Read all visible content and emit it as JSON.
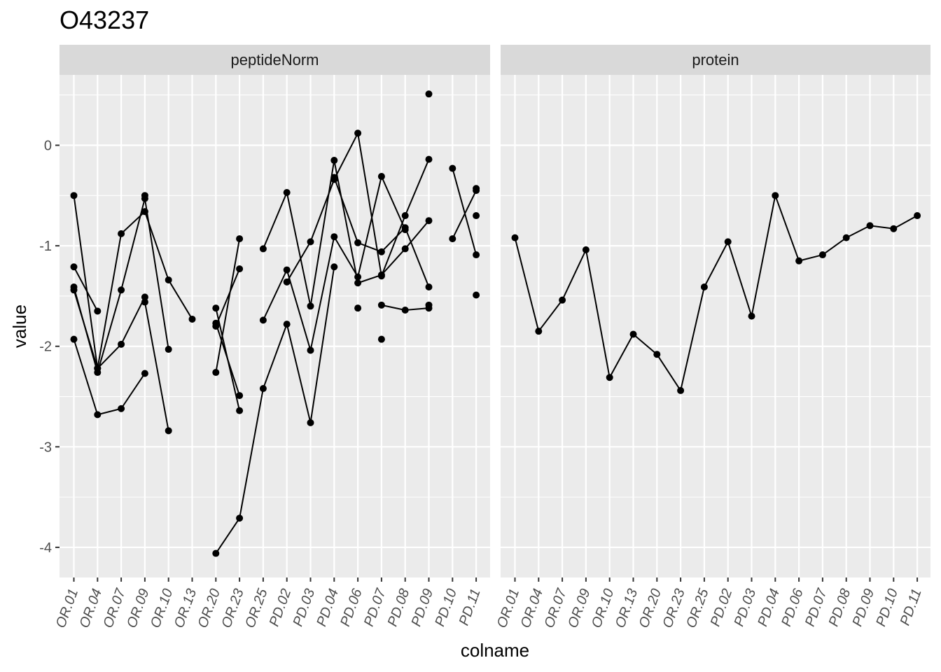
{
  "chart_data": {
    "type": "line",
    "title": "O43237",
    "xlabel": "colname",
    "ylabel": "value",
    "ylim": [
      -4.3,
      0.7
    ],
    "y_breaks": [
      0,
      -1,
      -2,
      -3,
      -4
    ],
    "y_tick_labels": [
      "0",
      "-1",
      "-2",
      "-3",
      "-4"
    ],
    "categories": [
      "OR.01",
      "OR.04",
      "OR.07",
      "OR.09",
      "OR.10",
      "OR.13",
      "OR.20",
      "OR.23",
      "OR.25",
      "PD.02",
      "PD.03",
      "PD.04",
      "PD.06",
      "PD.07",
      "PD.08",
      "PD.09",
      "PD.10",
      "PD.11"
    ],
    "grid": true,
    "colors": {
      "panel_bg": "#ebebeb",
      "grid": "#ffffff",
      "strip_bg": "#d9d9d9",
      "line": "#000000",
      "point": "#000000"
    },
    "panels": [
      {
        "strip": "peptideNorm",
        "series": [
          {
            "values": [
              -0.5,
              -2.22,
              -0.88,
              -0.66,
              -1.34,
              -1.73,
              null,
              null,
              null,
              null,
              null,
              null,
              null,
              null,
              null,
              null,
              null,
              null
            ]
          },
          {
            "values": [
              -1.41,
              -2.26,
              -1.44,
              -0.53,
              -2.03,
              null,
              null,
              null,
              null,
              null,
              null,
              null,
              null,
              null,
              null,
              null,
              null,
              null
            ]
          },
          {
            "values": [
              -1.44,
              -2.22,
              -1.98,
              -1.51,
              null,
              null,
              null,
              null,
              null,
              null,
              null,
              null,
              null,
              null,
              null,
              null,
              null,
              null
            ]
          },
          {
            "values": [
              -1.93,
              -2.68,
              -2.62,
              -2.27,
              null,
              null,
              null,
              null,
              null,
              null,
              null,
              null,
              null,
              null,
              null,
              null,
              null,
              null
            ]
          },
          {
            "values": [
              -1.21,
              -1.65,
              null,
              -1.56,
              -2.84,
              null,
              null,
              null,
              null,
              null,
              null,
              null,
              null,
              null,
              null,
              null,
              null,
              null
            ]
          },
          {
            "values": [
              null,
              null,
              null,
              -0.5,
              null,
              null,
              -1.62,
              -2.64,
              null,
              null,
              null,
              null,
              null,
              null,
              null,
              null,
              null,
              null
            ]
          },
          {
            "values": [
              null,
              null,
              null,
              null,
              null,
              null,
              -4.06,
              -3.71,
              -2.42,
              -1.78,
              -2.76,
              -1.21,
              null,
              null,
              null,
              null,
              null,
              null
            ]
          },
          {
            "values": [
              null,
              null,
              null,
              null,
              null,
              null,
              -2.26,
              -0.93,
              null,
              null,
              null,
              null,
              null,
              null,
              null,
              null,
              null,
              null
            ]
          },
          {
            "values": [
              null,
              null,
              null,
              null,
              null,
              null,
              -1.77,
              -2.49,
              null,
              null,
              null,
              null,
              null,
              null,
              null,
              null,
              null,
              null
            ]
          },
          {
            "values": [
              null,
              null,
              null,
              null,
              null,
              null,
              -1.8,
              -1.23,
              null,
              null,
              null,
              null,
              null,
              null,
              null,
              null,
              null,
              null
            ]
          },
          {
            "values": [
              null,
              null,
              null,
              null,
              null,
              null,
              null,
              null,
              -1.74,
              -1.24,
              -2.04,
              -0.91,
              -1.31,
              -0.31,
              -0.84,
              null,
              null,
              null
            ]
          },
          {
            "values": [
              null,
              null,
              null,
              null,
              null,
              null,
              null,
              null,
              -1.03,
              -0.47,
              -1.6,
              -0.15,
              -1.37,
              -1.29,
              -1.03,
              -0.75,
              null,
              null
            ]
          },
          {
            "values": [
              null,
              null,
              null,
              null,
              null,
              null,
              null,
              null,
              null,
              -1.36,
              -0.96,
              -0.34,
              0.12,
              -1.3,
              -0.7,
              -0.14,
              null,
              null
            ]
          },
          {
            "values": [
              null,
              null,
              null,
              null,
              null,
              null,
              null,
              null,
              null,
              null,
              null,
              -0.32,
              -0.97,
              -1.06,
              -0.82,
              -1.41,
              null,
              null
            ]
          },
          {
            "values": [
              null,
              null,
              null,
              null,
              null,
              null,
              null,
              null,
              null,
              null,
              null,
              null,
              -1.62,
              null,
              null,
              null,
              null,
              null
            ]
          },
          {
            "values": [
              null,
              null,
              null,
              null,
              null,
              null,
              null,
              null,
              null,
              null,
              null,
              null,
              null,
              -1.59,
              -1.64,
              -1.62,
              null,
              null
            ]
          },
          {
            "values": [
              null,
              null,
              null,
              null,
              null,
              null,
              null,
              null,
              null,
              null,
              null,
              null,
              null,
              -1.93,
              null,
              -1.59,
              null,
              null
            ]
          },
          {
            "values": [
              null,
              null,
              null,
              null,
              null,
              null,
              null,
              null,
              null,
              null,
              null,
              null,
              null,
              null,
              null,
              0.51,
              null,
              -0.43
            ]
          },
          {
            "values": [
              null,
              null,
              null,
              null,
              null,
              null,
              null,
              null,
              null,
              null,
              null,
              null,
              null,
              null,
              null,
              null,
              -0.23,
              -1.09
            ]
          },
          {
            "values": [
              null,
              null,
              null,
              null,
              null,
              null,
              null,
              null,
              null,
              null,
              null,
              null,
              null,
              null,
              null,
              null,
              -0.93,
              -0.45
            ]
          },
          {
            "values": [
              null,
              null,
              null,
              null,
              null,
              null,
              null,
              null,
              null,
              null,
              null,
              null,
              null,
              null,
              null,
              null,
              null,
              -0.7
            ]
          },
          {
            "values": [
              null,
              null,
              null,
              null,
              null,
              null,
              null,
              null,
              null,
              null,
              null,
              null,
              null,
              null,
              null,
              null,
              null,
              -1.49
            ]
          }
        ]
      },
      {
        "strip": "protein",
        "series": [
          {
            "values": [
              -0.92,
              -1.85,
              -1.54,
              -1.04,
              -2.31,
              -1.88,
              -2.08,
              -2.44,
              -1.41,
              -0.96,
              -1.7,
              -0.5,
              -1.15,
              -1.09,
              -0.92,
              -0.8,
              -0.83,
              -0.7
            ]
          }
        ]
      }
    ]
  }
}
